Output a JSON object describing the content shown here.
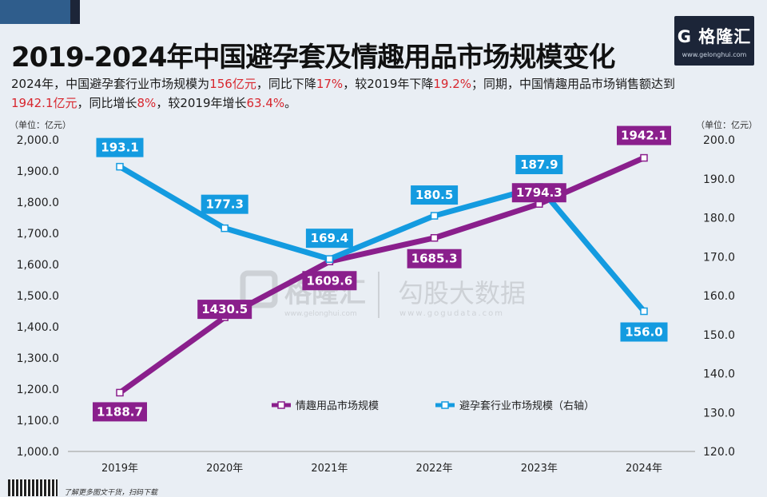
{
  "title": "2019-2024年中国避孕套及情趣用品市场规模变化",
  "subtitle": {
    "p1": "2024年，中国避孕套行业市场规模为",
    "v1": "156亿元",
    "p2": "，同比下降",
    "v2": "17%",
    "p3": "，较2019年下降",
    "v3": "19.2%",
    "p4": "；同期，中国情趣用品市场销售额达到",
    "v4": "1942.1亿元",
    "p5": "，同比增长",
    "v5": "8%",
    "p6": "，较2019年增长",
    "v6": "63.4%",
    "p7": "。"
  },
  "logo": {
    "name": "G 格隆汇",
    "url": "www.gelonghui.com"
  },
  "watermark": {
    "left": "格隆汇",
    "left_url": "www.gelonghui.com",
    "right": "勾股大数据",
    "right_url": "www.gogudata.com"
  },
  "footer": {
    "text": "了解更多图文干货，扫码下载"
  },
  "colors": {
    "purple": "#8a1f8c",
    "blue": "#149be0",
    "accent_red": "#d8262e"
  },
  "chart_data": {
    "type": "line",
    "categories": [
      "2019年",
      "2020年",
      "2021年",
      "2022年",
      "2023年",
      "2024年"
    ],
    "series": [
      {
        "name": "情趣用品市场规模",
        "axis": "left",
        "color": "#8a1f8c",
        "values": [
          1188.7,
          1430.5,
          1609.6,
          1685.3,
          1794.3,
          1942.1
        ],
        "labels": [
          "1188.7",
          "1430.5",
          "1609.6",
          "1685.3",
          "1794.3",
          "1942.1"
        ]
      },
      {
        "name": "避孕套行业市场规模（右轴）",
        "axis": "right",
        "color": "#149be0",
        "values": [
          193.1,
          177.3,
          169.4,
          180.5,
          187.9,
          156.0
        ],
        "labels": [
          "193.1",
          "177.3",
          "169.4",
          "180.5",
          "187.9",
          "156.0"
        ]
      }
    ],
    "left_axis": {
      "unit": "（单位：亿元）",
      "min": 1000,
      "max": 2000,
      "step": 100,
      "ticks": [
        "1,000.0",
        "1,100.0",
        "1,200.0",
        "1,300.0",
        "1,400.0",
        "1,500.0",
        "1,600.0",
        "1,700.0",
        "1,800.0",
        "1,900.0",
        "2,000.0"
      ]
    },
    "right_axis": {
      "unit": "（单位：亿元）",
      "min": 120,
      "max": 200,
      "step": 10,
      "ticks": [
        "120.0",
        "130.0",
        "140.0",
        "150.0",
        "160.0",
        "170.0",
        "180.0",
        "190.0",
        "200.0"
      ]
    },
    "legend_position": "bottom-right"
  }
}
